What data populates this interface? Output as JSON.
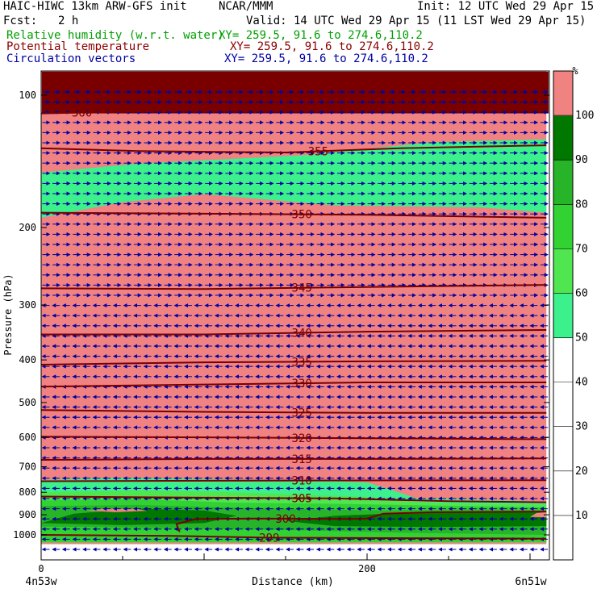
{
  "header": {
    "model": "HAIC-HIWC 13km ARW-GFS init",
    "org": "NCAR/MMM",
    "init": "Init: 12 UTC Wed 29 Apr 15",
    "fcst_label": "Fcst:",
    "fcst_value": "2 h",
    "valid": "Valid: 14 UTC Wed 29 Apr 15 (11 LST Wed 29 Apr 15)",
    "fields": [
      {
        "label": "Relative humidity (w.r.t. water)",
        "xy": "XY= 259.5, 91.6 to 274.6,110.2",
        "color": "#00a000"
      },
      {
        "label": "Potential temperature",
        "xy": "XY= 259.5, 91.6 to 274.6,110.2",
        "color": "#8b0000"
      },
      {
        "label": "Circulation vectors",
        "xy": "XY= 259.5, 91.6 to 274.6,110.2",
        "color": "#0000a0"
      }
    ]
  },
  "chart_data": {
    "type": "heatmap",
    "xlabel": "Distance (km)",
    "ylabel": "Pressure (hPa)",
    "xlim": [
      0,
      310
    ],
    "ylim": [
      1050,
      50
    ],
    "y_scale": "log-pressure",
    "x_ticks": [
      0,
      200
    ],
    "x_end_labels": [
      "4n53w",
      "6n51w"
    ],
    "y_ticks": [
      100,
      200,
      300,
      400,
      500,
      600,
      700,
      800,
      900,
      1000
    ],
    "colorbar": {
      "unit": "%",
      "levels": [
        10,
        20,
        30,
        40,
        50,
        60,
        70,
        80,
        90,
        100
      ],
      "colors": [
        "#ffffff",
        "#ffffff",
        "#ffffff",
        "#ffffff",
        "#ffffff",
        "#3cf08c",
        "#50e650",
        "#32d232",
        "#28b428",
        "#007800",
        "#f08282"
      ]
    },
    "rh_regions": [
      {
        "bin": 10,
        "points": [
          [
            0,
            1050
          ],
          [
            0,
            55
          ],
          [
            310,
            55
          ],
          [
            310,
            1050
          ]
        ]
      },
      {
        "bin": 5,
        "points": [
          [
            0,
            190
          ],
          [
            0,
            150
          ],
          [
            60,
            143
          ],
          [
            160,
            137
          ],
          [
            240,
            128
          ],
          [
            310,
            126
          ],
          [
            310,
            185
          ],
          [
            270,
            180
          ],
          [
            180,
            178
          ],
          [
            100,
            168
          ],
          [
            50,
            175
          ]
        ]
      },
      {
        "bin": 5,
        "points": [
          [
            0,
            1040
          ],
          [
            0,
            750
          ],
          [
            50,
            742
          ],
          [
            110,
            748
          ],
          [
            170,
            752
          ],
          [
            200,
            760
          ],
          [
            215,
            790
          ],
          [
            230,
            825
          ],
          [
            260,
            830
          ],
          [
            290,
            835
          ],
          [
            310,
            840
          ],
          [
            310,
            1040
          ]
        ]
      },
      {
        "bin": 6,
        "points": [
          [
            0,
            1040
          ],
          [
            0,
            800
          ],
          [
            60,
            792
          ],
          [
            110,
            798
          ],
          [
            150,
            808
          ],
          [
            200,
            820
          ],
          [
            230,
            840
          ],
          [
            260,
            850
          ],
          [
            310,
            852
          ],
          [
            310,
            1040
          ]
        ]
      },
      {
        "bin": 7,
        "points": [
          [
            0,
            1040
          ],
          [
            0,
            835
          ],
          [
            60,
            830
          ],
          [
            120,
            845
          ],
          [
            180,
            850
          ],
          [
            220,
            855
          ],
          [
            260,
            860
          ],
          [
            310,
            865
          ],
          [
            310,
            1040
          ]
        ]
      },
      {
        "bin": 8,
        "points": [
          [
            0,
            1040
          ],
          [
            0,
            860
          ],
          [
            60,
            855
          ],
          [
            110,
            865
          ],
          [
            170,
            875
          ],
          [
            210,
            880
          ],
          [
            260,
            875
          ],
          [
            310,
            878
          ],
          [
            310,
            1000
          ],
          [
            230,
            990
          ],
          [
            150,
            975
          ],
          [
            80,
            965
          ],
          [
            30,
            960
          ],
          [
            0,
            958
          ]
        ]
      },
      {
        "bin": 9,
        "points": [
          [
            0,
            940
          ],
          [
            20,
            895
          ],
          [
            60,
            872
          ],
          [
            100,
            880
          ],
          [
            120,
            905
          ],
          [
            100,
            940
          ],
          [
            50,
            950
          ]
        ]
      },
      {
        "bin": 9,
        "points": [
          [
            150,
            930
          ],
          [
            180,
            905
          ],
          [
            230,
            890
          ],
          [
            310,
            885
          ],
          [
            310,
            955
          ],
          [
            240,
            960
          ],
          [
            180,
            955
          ]
        ]
      },
      {
        "bin": 10,
        "points": [
          [
            28,
            880
          ],
          [
            40,
            872
          ],
          [
            60,
            874
          ],
          [
            65,
            882
          ],
          [
            45,
            888
          ]
        ]
      },
      {
        "bin": 10,
        "points": [
          [
            300,
            910
          ],
          [
            304,
            892
          ],
          [
            310,
            888
          ],
          [
            310,
            912
          ]
        ]
      }
    ],
    "theta_contours": [
      {
        "label": "360",
        "label_x": 25,
        "points": [
          [
            0,
            110
          ],
          [
            100,
            108
          ],
          [
            200,
            106
          ],
          [
            310,
            105
          ]
        ]
      },
      {
        "label": "355",
        "label_x": 170,
        "points": [
          [
            0,
            132
          ],
          [
            60,
            134
          ],
          [
            150,
            135
          ],
          [
            220,
            132
          ],
          [
            310,
            130
          ]
        ]
      },
      {
        "label": "350",
        "label_x": 160,
        "points": [
          [
            0,
            185
          ],
          [
            100,
            186
          ],
          [
            200,
            187
          ],
          [
            310,
            190
          ]
        ]
      },
      {
        "label": "345",
        "label_x": 160,
        "points": [
          [
            0,
            275
          ],
          [
            100,
            276
          ],
          [
            200,
            273
          ],
          [
            310,
            270
          ]
        ]
      },
      {
        "label": "340",
        "label_x": 160,
        "points": [
          [
            0,
            350
          ],
          [
            100,
            350
          ],
          [
            200,
            345
          ],
          [
            310,
            342
          ]
        ]
      },
      {
        "label": "335",
        "label_x": 160,
        "points": [
          [
            0,
            410
          ],
          [
            100,
            405
          ],
          [
            200,
            403
          ],
          [
            310,
            402
          ]
        ]
      },
      {
        "label": "330",
        "label_x": 160,
        "points": [
          [
            0,
            460
          ],
          [
            100,
            455
          ],
          [
            200,
            450
          ],
          [
            310,
            450
          ]
        ]
      },
      {
        "label": "325",
        "label_x": 160,
        "points": [
          [
            0,
            520
          ],
          [
            100,
            525
          ],
          [
            200,
            528
          ],
          [
            310,
            528
          ]
        ]
      },
      {
        "label": "320",
        "label_x": 160,
        "points": [
          [
            0,
            598
          ],
          [
            100,
            600
          ],
          [
            200,
            603
          ],
          [
            310,
            606
          ]
        ]
      },
      {
        "label": "315",
        "label_x": 160,
        "points": [
          [
            0,
            675
          ],
          [
            100,
            672
          ],
          [
            200,
            672
          ],
          [
            310,
            670
          ]
        ]
      },
      {
        "label": "310",
        "label_x": 160,
        "points": [
          [
            0,
            755
          ],
          [
            100,
            753
          ],
          [
            200,
            752
          ],
          [
            310,
            751
          ]
        ]
      },
      {
        "label": "305",
        "label_x": 160,
        "points": [
          [
            0,
            818
          ],
          [
            100,
            823
          ],
          [
            180,
            826
          ],
          [
            250,
            838
          ],
          [
            310,
            843
          ]
        ]
      },
      {
        "label": "300",
        "label_x": 150,
        "points": [
          [
            85,
            985
          ],
          [
            83,
            945
          ],
          [
            95,
            920
          ],
          [
            130,
            918
          ],
          [
            190,
            920
          ],
          [
            200,
            918
          ],
          [
            210,
            895
          ],
          [
            240,
            888
          ],
          [
            310,
            885
          ]
        ]
      },
      {
        "label": "299",
        "label_x": 140,
        "points": [
          [
            0,
            1000
          ],
          [
            80,
            1005
          ],
          [
            140,
            1015
          ],
          [
            310,
            1020
          ]
        ]
      }
    ],
    "wind": {
      "upper_u": 1,
      "lower_u": -1,
      "transition_pressure": 290
    }
  }
}
